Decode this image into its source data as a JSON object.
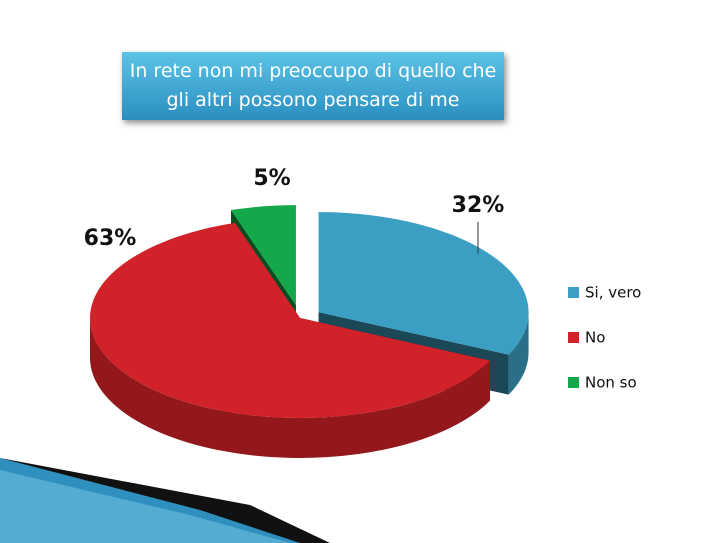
{
  "chart_data": {
    "type": "pie",
    "title": "In rete non mi preoccupo di quello che gli altri possono pensare di me",
    "categories": [
      "Si, vero",
      "No",
      "Non so"
    ],
    "values": [
      32,
      63,
      5
    ],
    "value_labels": [
      "32%",
      "63%",
      "5%"
    ],
    "colors": [
      "#3a9fc2",
      "#d02228",
      "#14a84a"
    ],
    "legend": "right"
  }
}
